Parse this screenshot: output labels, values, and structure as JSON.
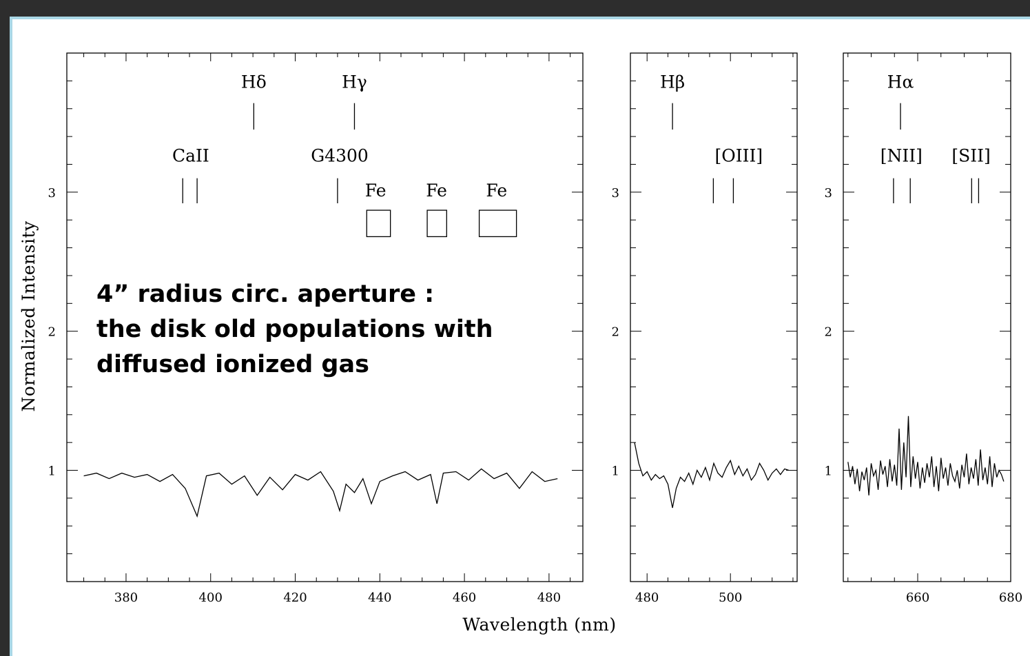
{
  "chart_data": {
    "type": "line",
    "ylabel": "Normalized Intensity",
    "xlabel": "Wavelength (nm)",
    "annotation": [
      "4” radius circ. aperture :",
      "the disk old populations with",
      "diffused ionized gas"
    ],
    "panels": [
      {
        "xlim": [
          366,
          488
        ],
        "ylim": [
          0.2,
          4.0
        ],
        "xticks": [
          380,
          400,
          420,
          440,
          460,
          480
        ],
        "yticks": [
          1,
          2,
          3
        ],
        "x": [
          370,
          373,
          376,
          379,
          382,
          385,
          388,
          391,
          394,
          396.8,
          399,
          402,
          405,
          408,
          411,
          414,
          417,
          420,
          423,
          426,
          429,
          430.5,
          432,
          434,
          436,
          438,
          440,
          443,
          446,
          449,
          452,
          453.5,
          455,
          458,
          461,
          464,
          467,
          470,
          473,
          476,
          479,
          482
        ],
        "y": [
          0.96,
          0.98,
          0.94,
          0.98,
          0.95,
          0.97,
          0.92,
          0.97,
          0.87,
          0.67,
          0.96,
          0.98,
          0.9,
          0.96,
          0.82,
          0.95,
          0.86,
          0.97,
          0.93,
          0.99,
          0.85,
          0.71,
          0.9,
          0.84,
          0.94,
          0.76,
          0.92,
          0.96,
          0.99,
          0.93,
          0.97,
          0.76,
          0.98,
          0.99,
          0.93,
          1.01,
          0.94,
          0.98,
          0.87,
          0.99,
          0.92,
          0.94
        ],
        "lines": [
          {
            "label": "Hδ",
            "x": 410.2,
            "y": 3.75,
            "marker": [
              3.45,
              3.64
            ]
          },
          {
            "label": "Hγ",
            "x": 434.0,
            "y": 3.75,
            "marker": [
              3.45,
              3.64
            ]
          },
          {
            "label": "CaII",
            "x": 395.3,
            "y": 3.22,
            "markers": [
              393.4,
              396.8
            ],
            "marker": [
              2.92,
              3.1
            ]
          },
          {
            "label": "G4300",
            "x": 430.5,
            "y": 3.22,
            "markers": [
              430.0
            ],
            "marker": [
              2.92,
              3.1
            ]
          },
          {
            "label": "Fe",
            "x": 439.0,
            "y": 2.97,
            "box": [
              436.9,
              442.5,
              2.68,
              2.87
            ]
          },
          {
            "label": "Fe",
            "x": 453.4,
            "y": 2.97,
            "box": [
              451.2,
              455.8,
              2.68,
              2.87
            ]
          },
          {
            "label": "Fe",
            "x": 467.6,
            "y": 2.97,
            "box": [
              463.5,
              472.3,
              2.68,
              2.87
            ]
          }
        ]
      },
      {
        "xlim": [
          476,
          516
        ],
        "ylim": [
          0.2,
          4.0
        ],
        "xticks": [
          480,
          500
        ],
        "yticks": [
          1,
          2,
          3
        ],
        "x": [
          477,
          478,
          479,
          480,
          481,
          482,
          483,
          484,
          485,
          486.1,
          487,
          488,
          489,
          490,
          491,
          492,
          493,
          494,
          495,
          496,
          497,
          498,
          499,
          500,
          501,
          502,
          503,
          504,
          505,
          506,
          507,
          508,
          509,
          510,
          511,
          512,
          513,
          514
        ],
        "y": [
          1.2,
          1.05,
          0.96,
          0.99,
          0.93,
          0.97,
          0.94,
          0.96,
          0.9,
          0.73,
          0.87,
          0.95,
          0.92,
          0.98,
          0.9,
          1.0,
          0.95,
          1.02,
          0.93,
          1.05,
          0.98,
          0.95,
          1.02,
          1.07,
          0.97,
          1.03,
          0.96,
          1.01,
          0.93,
          0.97,
          1.05,
          1.0,
          0.93,
          0.98,
          1.01,
          0.97,
          1.01,
          1.0
        ],
        "lines": [
          {
            "label": "Hβ",
            "x": 486.1,
            "y": 3.75,
            "marker": [
              3.45,
              3.64
            ]
          },
          {
            "label": "[OIII]",
            "x": 502.0,
            "y": 3.22,
            "markers": [
              495.9,
              500.7
            ],
            "marker": [
              2.92,
              3.1
            ]
          }
        ]
      },
      {
        "xlim": [
          644,
          680
        ],
        "ylim": [
          0.2,
          4.0
        ],
        "xticks": [
          660,
          680
        ],
        "yticks": [
          1,
          2,
          3
        ],
        "x": [
          645,
          645.5,
          646,
          646.5,
          647,
          647.5,
          648,
          648.5,
          649,
          649.5,
          650,
          650.5,
          651,
          651.5,
          652,
          652.5,
          653,
          653.5,
          654,
          654.5,
          655,
          655.5,
          656,
          656.5,
          657,
          657.5,
          658,
          658.5,
          659,
          659.5,
          660,
          660.5,
          661,
          661.5,
          662,
          662.5,
          663,
          663.5,
          664,
          664.5,
          665,
          665.5,
          666,
          666.5,
          667,
          667.5,
          668,
          668.5,
          669,
          669.5,
          670,
          670.5,
          671,
          671.5,
          672,
          672.5,
          673,
          673.5,
          674,
          674.5,
          675,
          675.5,
          676,
          676.5,
          677,
          677.5,
          678,
          678.5
        ],
        "y": [
          1.06,
          0.95,
          1.03,
          0.9,
          1.01,
          0.85,
          0.99,
          0.93,
          1.02,
          0.82,
          1.05,
          0.96,
          1.0,
          0.86,
          1.07,
          0.97,
          1.03,
          0.88,
          1.08,
          0.92,
          1.04,
          0.89,
          1.3,
          0.86,
          1.2,
          0.95,
          1.39,
          0.88,
          1.1,
          0.94,
          1.06,
          0.87,
          1.02,
          0.91,
          1.05,
          0.95,
          1.1,
          0.88,
          1.03,
          0.85,
          1.09,
          0.94,
          1.02,
          0.89,
          1.05,
          0.96,
          0.92,
          1.0,
          0.87,
          1.04,
          0.95,
          1.12,
          0.9,
          1.02,
          0.94,
          1.08,
          0.89,
          1.15,
          0.93,
          1.02,
          0.9,
          1.1,
          0.88,
          1.05,
          0.95,
          1.0,
          0.97,
          0.92
        ],
        "lines": [
          {
            "label": "Hα",
            "x": 656.3,
            "y": 3.75,
            "marker": [
              3.45,
              3.64
            ]
          },
          {
            "label": "[NII]",
            "x": 656.5,
            "y": 3.22,
            "markers": [
              654.8,
              658.4
            ],
            "marker": [
              2.92,
              3.1
            ]
          },
          {
            "label": "[SII]",
            "x": 671.5,
            "y": 3.22,
            "markers": [
              671.6,
              673.1
            ],
            "marker": [
              2.92,
              3.1
            ]
          }
        ]
      }
    ]
  }
}
